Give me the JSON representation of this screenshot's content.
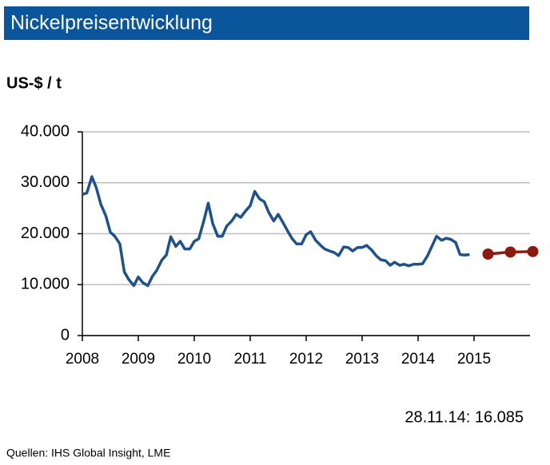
{
  "chart_data": {
    "type": "line",
    "title": "Nickelpreisentwicklung",
    "y_label": "US-$ / t",
    "annotation": "28.11.14: 16.085",
    "source": "Quellen: IHS Global Insight, LME",
    "xlim": [
      2008,
      2016
    ],
    "xticks": [
      2008,
      2009,
      2010,
      2011,
      2012,
      2013,
      2014,
      2015
    ],
    "ylim": [
      0,
      40000
    ],
    "yticks": [
      0,
      {
        "value": 10000,
        "label": "10.000"
      },
      {
        "value": 20000,
        "label": "20.000"
      },
      {
        "value": 30000,
        "label": "30.000"
      },
      {
        "value": 40000,
        "label": "40.000"
      }
    ],
    "grid": true,
    "series": [
      {
        "color": "#1f5289",
        "markers": false,
        "x": [
          2008.0,
          2008.08,
          2008.17,
          2008.25,
          2008.33,
          2008.42,
          2008.5,
          2008.58,
          2008.67,
          2008.75,
          2008.83,
          2008.92,
          2009.0,
          2009.08,
          2009.17,
          2009.25,
          2009.33,
          2009.42,
          2009.5,
          2009.58,
          2009.67,
          2009.75,
          2009.83,
          2009.92,
          2010.0,
          2010.08,
          2010.17,
          2010.25,
          2010.33,
          2010.42,
          2010.5,
          2010.58,
          2010.67,
          2010.75,
          2010.83,
          2010.92,
          2011.0,
          2011.08,
          2011.17,
          2011.25,
          2011.33,
          2011.42,
          2011.5,
          2011.58,
          2011.67,
          2011.75,
          2011.83,
          2011.92,
          2012.0,
          2012.08,
          2012.17,
          2012.25,
          2012.33,
          2012.42,
          2012.5,
          2012.58,
          2012.67,
          2012.75,
          2012.83,
          2012.92,
          2013.0,
          2013.08,
          2013.17,
          2013.25,
          2013.33,
          2013.42,
          2013.5,
          2013.58,
          2013.67,
          2013.75,
          2013.83,
          2013.92,
          2014.0,
          2014.08,
          2014.17,
          2014.25,
          2014.33,
          2014.42,
          2014.5,
          2014.58,
          2014.67,
          2014.75,
          2014.83,
          2014.92
        ],
        "values": [
          27700,
          28000,
          31200,
          29000,
          25800,
          23500,
          20300,
          19500,
          18000,
          12500,
          11000,
          9800,
          11500,
          10400,
          9800,
          11600,
          12800,
          14800,
          15800,
          19400,
          17500,
          18500,
          17000,
          17000,
          18500,
          19000,
          22500,
          26000,
          22000,
          19500,
          19500,
          21500,
          22500,
          23800,
          23200,
          24500,
          25500,
          28300,
          26800,
          26300,
          24200,
          22500,
          23800,
          22300,
          20500,
          19000,
          18000,
          18000,
          19800,
          20400,
          18700,
          17800,
          17000,
          16600,
          16300,
          15700,
          17400,
          17300,
          16600,
          17300,
          17300,
          17700,
          16800,
          15700,
          14900,
          14700,
          13800,
          14400,
          13800,
          14000,
          13700,
          14000,
          14000,
          14100,
          15700,
          17600,
          19500,
          18700,
          19100,
          18900,
          18300,
          15900,
          15800,
          15900
        ]
      },
      {
        "color": "#8b1a10",
        "markers": true,
        "x": [
          2015.25,
          2015.65,
          2016.05
        ],
        "values": [
          16000,
          16400,
          16500
        ]
      }
    ]
  }
}
